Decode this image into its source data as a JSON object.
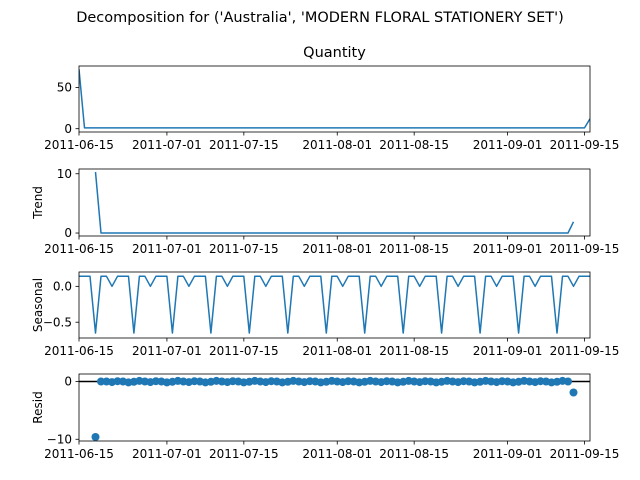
{
  "figure": {
    "title": "Decomposition for ('Australia', 'MODERN FLORAL STATIONERY SET')"
  },
  "colors": {
    "line": "#1f77b4",
    "marker": "#1f77b4",
    "axis": "#000000",
    "zero_line": "#000000"
  },
  "chart_data": [
    {
      "type": "line",
      "title": "Quantity",
      "ylabel": "",
      "xlabel": "",
      "xlim": [
        "2011-06-15",
        "2011-09-16"
      ],
      "ylim": [
        -4,
        76
      ],
      "x_ticks": [
        "2011-06-15",
        "2011-07-01",
        "2011-07-15",
        "2011-08-01",
        "2011-08-15",
        "2011-09-01",
        "2011-09-15"
      ],
      "y_ticks": [
        0,
        50
      ],
      "series": [
        {
          "values": [
            [
              "2011-06-15",
              72
            ],
            [
              "2011-06-16",
              1
            ],
            [
              "2011-09-14",
              1
            ],
            [
              "2011-09-15",
              1
            ],
            [
              "2011-09-16",
              12
            ]
          ]
        }
      ],
      "grid": false
    },
    {
      "type": "line",
      "title": "",
      "ylabel": "Trend",
      "xlabel": "",
      "xlim": [
        "2011-06-15",
        "2011-09-16"
      ],
      "ylim": [
        -0.5,
        10.8
      ],
      "x_ticks": [
        "2011-06-15",
        "2011-07-01",
        "2011-07-15",
        "2011-08-01",
        "2011-08-15",
        "2011-09-01",
        "2011-09-15"
      ],
      "y_ticks": [
        0,
        10
      ],
      "series": [
        {
          "values": [
            [
              "2011-06-18",
              10.3
            ],
            [
              "2011-06-19",
              0
            ],
            [
              "2011-09-12",
              0
            ],
            [
              "2011-09-13",
              1.9
            ]
          ]
        }
      ],
      "grid": false
    },
    {
      "type": "line",
      "title": "",
      "ylabel": "Seasonal",
      "xlabel": "",
      "xlim": [
        "2011-06-15",
        "2011-09-16"
      ],
      "ylim": [
        -0.72,
        0.2
      ],
      "x_ticks": [
        "2011-06-15",
        "2011-07-01",
        "2011-07-15",
        "2011-08-01",
        "2011-08-15",
        "2011-09-01",
        "2011-09-15"
      ],
      "y_ticks": [
        0.0,
        -0.5
      ],
      "weekly_pattern": [
        0.14,
        0.14,
        0.14,
        -0.65,
        0.14,
        0.14,
        0.0
      ],
      "pattern_start": "2011-06-15",
      "grid": false
    },
    {
      "type": "scatter",
      "title": "",
      "ylabel": "Resid",
      "xlabel": "",
      "xlim": [
        "2011-06-15",
        "2011-09-16"
      ],
      "ylim": [
        -10.3,
        1.3
      ],
      "x_ticks": [
        "2011-06-15",
        "2011-07-01",
        "2011-07-15",
        "2011-08-01",
        "2011-08-15",
        "2011-09-01",
        "2011-09-15"
      ],
      "y_ticks": [
        0,
        -10
      ],
      "reference_line": 0,
      "series": [
        {
          "points": [
            [
              "2011-06-18",
              -9.6
            ],
            [
              "2011-06-19",
              0
            ],
            [
              "2011-09-12",
              0
            ],
            [
              "2011-09-13",
              -1.9
            ]
          ],
          "fill_range": [
            "2011-06-20",
            "2011-09-11"
          ],
          "fill_value_pattern": [
            0.0,
            -0.1,
            0.05,
            0.0,
            -0.15,
            -0.05,
            0.1
          ],
          "marker_radius_note": "uniform"
        }
      ],
      "grid": false
    }
  ]
}
